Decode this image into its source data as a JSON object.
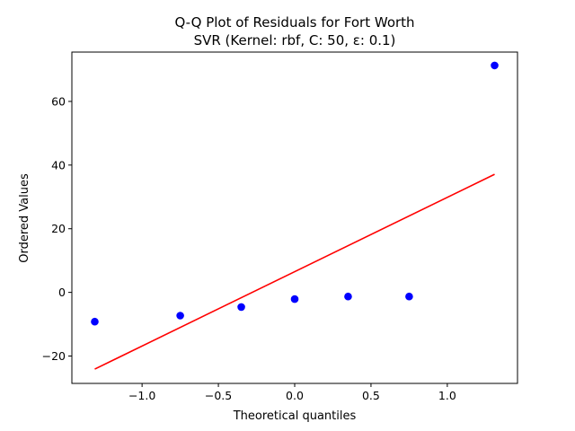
{
  "chart_data": {
    "type": "scatter",
    "title": "Q-Q Plot of Residuals for Fort Worth",
    "subtitle": "SVR (Kernel: rbf, C: 50, ε: 0.1)",
    "xlabel": "Theoretical quantiles",
    "ylabel": "Ordered Values",
    "xlim": [
      -1.46,
      1.46
    ],
    "ylim": [
      -28.6,
      75.5
    ],
    "x_ticks": [
      -1.0,
      -0.5,
      0.0,
      0.5,
      1.0
    ],
    "x_tick_labels": [
      "−1.0",
      "−0.5",
      "0.0",
      "0.5",
      "1.0"
    ],
    "y_ticks": [
      -20,
      0,
      20,
      40,
      60
    ],
    "y_tick_labels": [
      "−20",
      "0",
      "20",
      "40",
      "60"
    ],
    "grid": false,
    "series": [
      {
        "kind": "points",
        "color": "#0000ff",
        "x": [
          -1.31,
          -0.75,
          -0.35,
          0.0,
          0.35,
          0.75,
          1.31
        ],
        "y": [
          -9.2,
          -7.3,
          -4.6,
          -2.1,
          -1.3,
          -1.3,
          71.3
        ]
      },
      {
        "kind": "fit-line",
        "color": "#ff0000",
        "x": [
          -1.31,
          1.31
        ],
        "y": [
          -24.1,
          37.1
        ]
      }
    ]
  }
}
